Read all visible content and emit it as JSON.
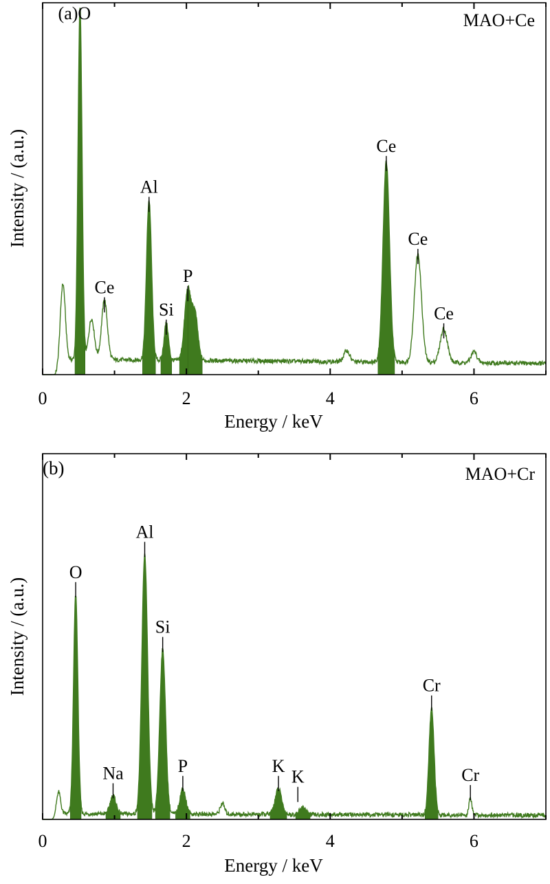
{
  "chart_data": [
    {
      "type": "line",
      "panel_label": "(a)",
      "sample_label": "MAO+Ce",
      "xlabel": "Energy / keV",
      "ylabel": "Intensity / (a.u.)",
      "xlim": [
        0,
        7
      ],
      "ylim": [
        0,
        100
      ],
      "xticks": [
        0,
        2,
        4,
        6
      ],
      "baseline": 4,
      "peaks": [
        {
          "x": 0.28,
          "y": 21,
          "w": 0.035,
          "filled": false
        },
        {
          "x": 0.52,
          "y": 95,
          "w": 0.028,
          "filled": true
        },
        {
          "x": 0.68,
          "y": 11,
          "w": 0.04,
          "filled": false
        },
        {
          "x": 0.86,
          "y": 16,
          "w": 0.04,
          "filled": false
        },
        {
          "x": 1.48,
          "y": 43,
          "w": 0.035,
          "filled": true
        },
        {
          "x": 1.72,
          "y": 10,
          "w": 0.03,
          "filled": true
        },
        {
          "x": 2.02,
          "y": 19,
          "w": 0.045,
          "filled": true
        },
        {
          "x": 2.12,
          "y": 12,
          "w": 0.04,
          "filled": true
        },
        {
          "x": 4.23,
          "y": 3,
          "w": 0.04,
          "filled": false
        },
        {
          "x": 4.78,
          "y": 54,
          "w": 0.045,
          "filled": true
        },
        {
          "x": 5.22,
          "y": 29,
          "w": 0.05,
          "filled": false
        },
        {
          "x": 5.58,
          "y": 9,
          "w": 0.05,
          "filled": false
        },
        {
          "x": 6.0,
          "y": 3,
          "w": 0.04,
          "filled": false
        }
      ],
      "peak_labels": [
        {
          "text": "(a)O",
          "x": 0.52,
          "y": 95,
          "marker": false
        },
        {
          "text": "Ce",
          "x": 0.86,
          "y": 16,
          "marker": true
        },
        {
          "text": "Al",
          "x": 1.48,
          "y": 43,
          "marker": true
        },
        {
          "text": "Si",
          "x": 1.72,
          "y": 10,
          "marker": true
        },
        {
          "text": "P",
          "x": 2.02,
          "y": 19,
          "marker": true
        },
        {
          "text": "Ce",
          "x": 4.78,
          "y": 54,
          "marker": true
        },
        {
          "text": "Ce",
          "x": 5.22,
          "y": 29,
          "marker": true
        },
        {
          "text": "Ce",
          "x": 5.58,
          "y": 9,
          "marker": true
        }
      ]
    },
    {
      "type": "line",
      "panel_label": "(b)",
      "sample_label": "MAO+Cr",
      "xlabel": "Energy / keV",
      "ylabel": "Intensity / (a.u.)",
      "xlim": [
        0,
        7
      ],
      "ylim": [
        0,
        100
      ],
      "xticks": [
        0,
        2,
        4,
        6
      ],
      "baseline": 1.5,
      "peaks": [
        {
          "x": 0.22,
          "y": 7,
          "w": 0.03,
          "filled": false
        },
        {
          "x": 0.46,
          "y": 60,
          "w": 0.03,
          "filled": true
        },
        {
          "x": 0.98,
          "y": 5,
          "w": 0.04,
          "filled": true
        },
        {
          "x": 1.42,
          "y": 71,
          "w": 0.04,
          "filled": true
        },
        {
          "x": 1.67,
          "y": 45,
          "w": 0.04,
          "filled": true
        },
        {
          "x": 1.95,
          "y": 7,
          "w": 0.04,
          "filled": true
        },
        {
          "x": 2.5,
          "y": 3,
          "w": 0.03,
          "filled": false
        },
        {
          "x": 3.28,
          "y": 7,
          "w": 0.045,
          "filled": true
        },
        {
          "x": 3.62,
          "y": 2,
          "w": 0.04,
          "filled": true
        },
        {
          "x": 5.41,
          "y": 29,
          "w": 0.035,
          "filled": true
        },
        {
          "x": 5.95,
          "y": 4.5,
          "w": 0.02,
          "filled": false
        }
      ],
      "peak_labels": [
        {
          "text": "O",
          "x": 0.46,
          "y": 60,
          "marker": true
        },
        {
          "text": "Na",
          "x": 0.98,
          "y": 5,
          "marker": true
        },
        {
          "text": "Al",
          "x": 1.42,
          "y": 71,
          "marker": true
        },
        {
          "text": "Si",
          "x": 1.67,
          "y": 45,
          "marker": true
        },
        {
          "text": "P",
          "x": 1.95,
          "y": 7,
          "marker": true
        },
        {
          "text": "K",
          "x": 3.28,
          "y": 7,
          "marker": true
        },
        {
          "text": "K",
          "x": 3.55,
          "y": 4,
          "marker": true
        },
        {
          "text": "Cr",
          "x": 5.41,
          "y": 29,
          "marker": true
        },
        {
          "text": "Cr",
          "x": 5.95,
          "y": 4.5,
          "marker": true
        }
      ]
    }
  ]
}
